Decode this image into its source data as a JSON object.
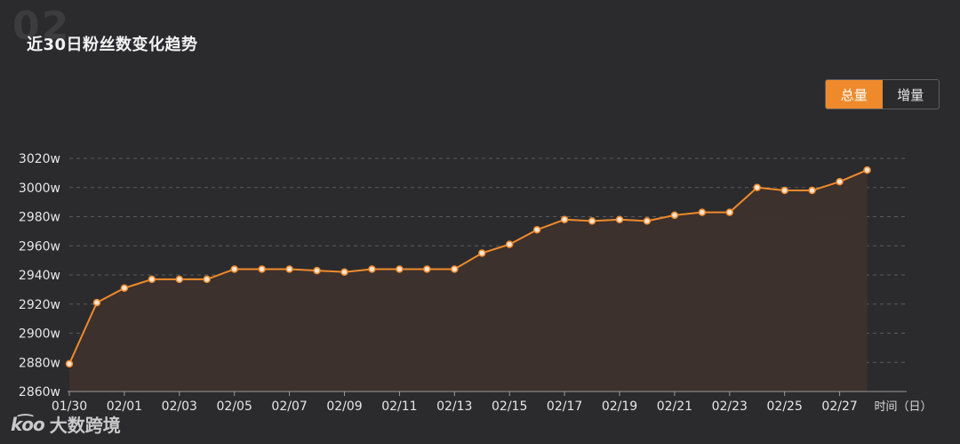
{
  "header": {
    "section_number": "02",
    "title": "近30日粉丝数变化趋势"
  },
  "toggle": {
    "options": [
      {
        "label": "总量",
        "active": true
      },
      {
        "label": "增量",
        "active": false
      }
    ]
  },
  "watermark": {
    "mark": "k͡oo",
    "text": "大数跨境"
  },
  "colors": {
    "background": "#2b2b2d",
    "line": "#ef8a2c",
    "area": "#3d322d",
    "grid": "#5a5a5e",
    "text": "#e6e6e6"
  },
  "chart_data": {
    "type": "area",
    "title": "近30日粉丝数变化趋势",
    "xlabel": "时间（日）",
    "ylabel": "",
    "ylim": [
      2860,
      3020
    ],
    "y_ticks": [
      2860,
      2880,
      2900,
      2920,
      2940,
      2960,
      2980,
      3000,
      3020
    ],
    "y_tick_labels": [
      "2860w",
      "2880w",
      "2900w",
      "2920w",
      "2940w",
      "2960w",
      "2980w",
      "3000w",
      "3020w"
    ],
    "x_tick_labels": [
      "01/30",
      "02/01",
      "02/03",
      "02/05",
      "02/07",
      "02/09",
      "02/11",
      "02/13",
      "02/15",
      "02/17",
      "02/19",
      "02/21",
      "02/23",
      "02/25",
      "02/27"
    ],
    "grid": true,
    "legend": "none",
    "series": [
      {
        "x": [
          "01/30",
          "01/31",
          "02/01",
          "02/02",
          "02/03",
          "02/04",
          "02/05",
          "02/06",
          "02/07",
          "02/08",
          "02/09",
          "02/10",
          "02/11",
          "02/12",
          "02/13",
          "02/14",
          "02/15",
          "02/16",
          "02/17",
          "02/18",
          "02/19",
          "02/20",
          "02/21",
          "02/22",
          "02/23",
          "02/24",
          "02/25",
          "02/26",
          "02/27",
          "02/28"
        ],
        "values": [
          2879,
          2921,
          2931,
          2937,
          2937,
          2937,
          2944,
          2944,
          2944,
          2943,
          2942,
          2944,
          2944,
          2944,
          2944,
          2955,
          2961,
          2971,
          2978,
          2977,
          2978,
          2977,
          2981,
          2983,
          2983,
          3000,
          2998,
          2998,
          3004,
          3012
        ]
      }
    ]
  }
}
